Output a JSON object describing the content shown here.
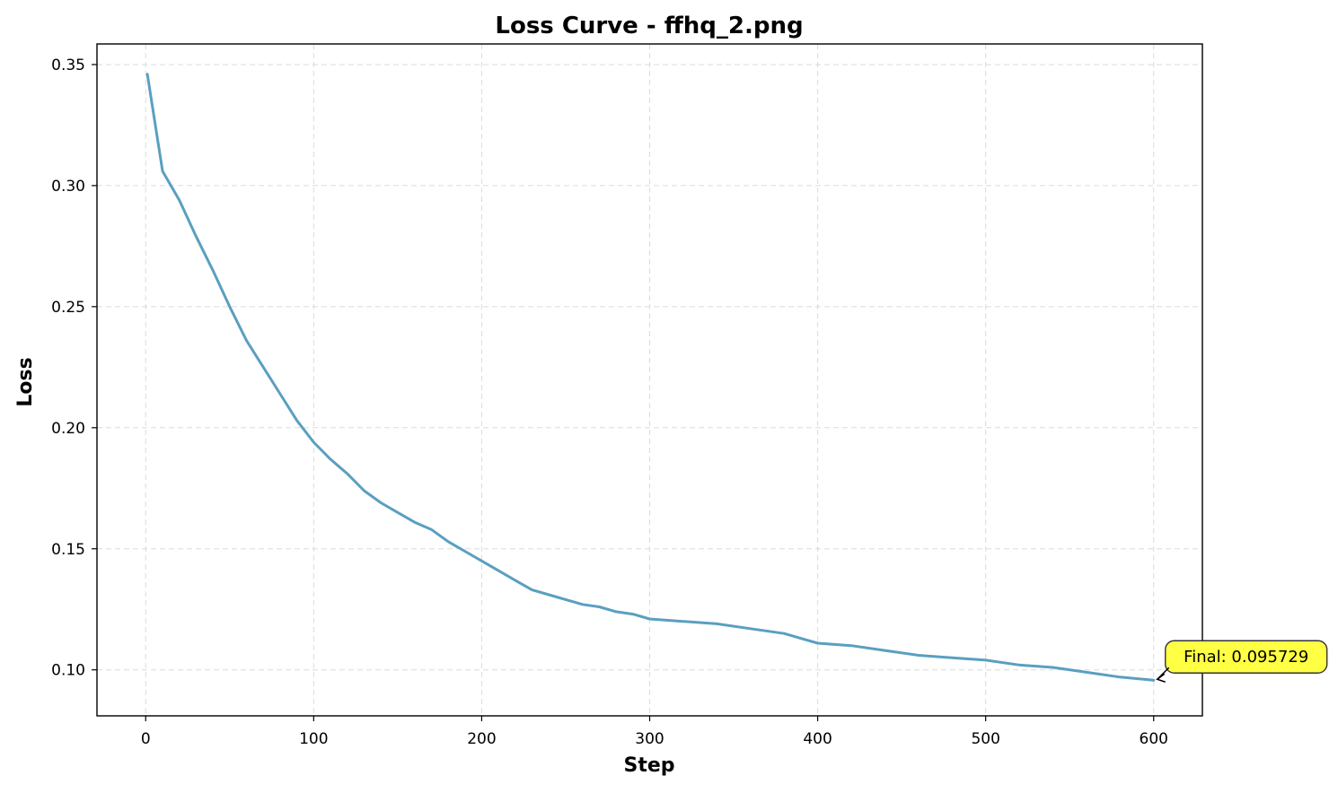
{
  "chart_data": {
    "type": "line",
    "title": "Loss Curve - ffhq_2.png",
    "xlabel": "Step",
    "ylabel": "Loss",
    "xlim": [
      -29,
      629
    ],
    "ylim": [
      0.081,
      0.3585
    ],
    "xticks": [
      0,
      100,
      200,
      300,
      400,
      500,
      600
    ],
    "xtick_labels": [
      "0",
      "100",
      "200",
      "300",
      "400",
      "500",
      "600"
    ],
    "yticks": [
      0.1,
      0.15,
      0.2,
      0.25,
      0.3,
      0.35
    ],
    "ytick_labels": [
      "0.10",
      "0.15",
      "0.20",
      "0.25",
      "0.30",
      "0.35"
    ],
    "grid": true,
    "series": [
      {
        "color": "#5a9fc0",
        "x": [
          1,
          10,
          20,
          30,
          40,
          50,
          60,
          70,
          80,
          90,
          100,
          110,
          120,
          130,
          140,
          150,
          160,
          170,
          180,
          190,
          200,
          210,
          220,
          230,
          240,
          250,
          260,
          270,
          280,
          290,
          300,
          320,
          340,
          360,
          380,
          400,
          420,
          440,
          460,
          480,
          500,
          520,
          540,
          560,
          580,
          600
        ],
        "y": [
          0.346,
          0.306,
          0.294,
          0.279,
          0.265,
          0.25,
          0.236,
          0.225,
          0.214,
          0.203,
          0.194,
          0.187,
          0.181,
          0.174,
          0.169,
          0.165,
          0.161,
          0.158,
          0.153,
          0.149,
          0.145,
          0.141,
          0.137,
          0.133,
          0.131,
          0.129,
          0.127,
          0.126,
          0.124,
          0.123,
          0.121,
          0.12,
          0.119,
          0.117,
          0.115,
          0.111,
          0.11,
          0.108,
          0.106,
          0.105,
          0.104,
          0.102,
          0.101,
          0.099,
          0.097,
          0.0957
        ]
      }
    ],
    "annotation": {
      "text": "Final: 0.095729",
      "x": 600,
      "y": 0.095729,
      "box_color": "#ffff44"
    }
  }
}
